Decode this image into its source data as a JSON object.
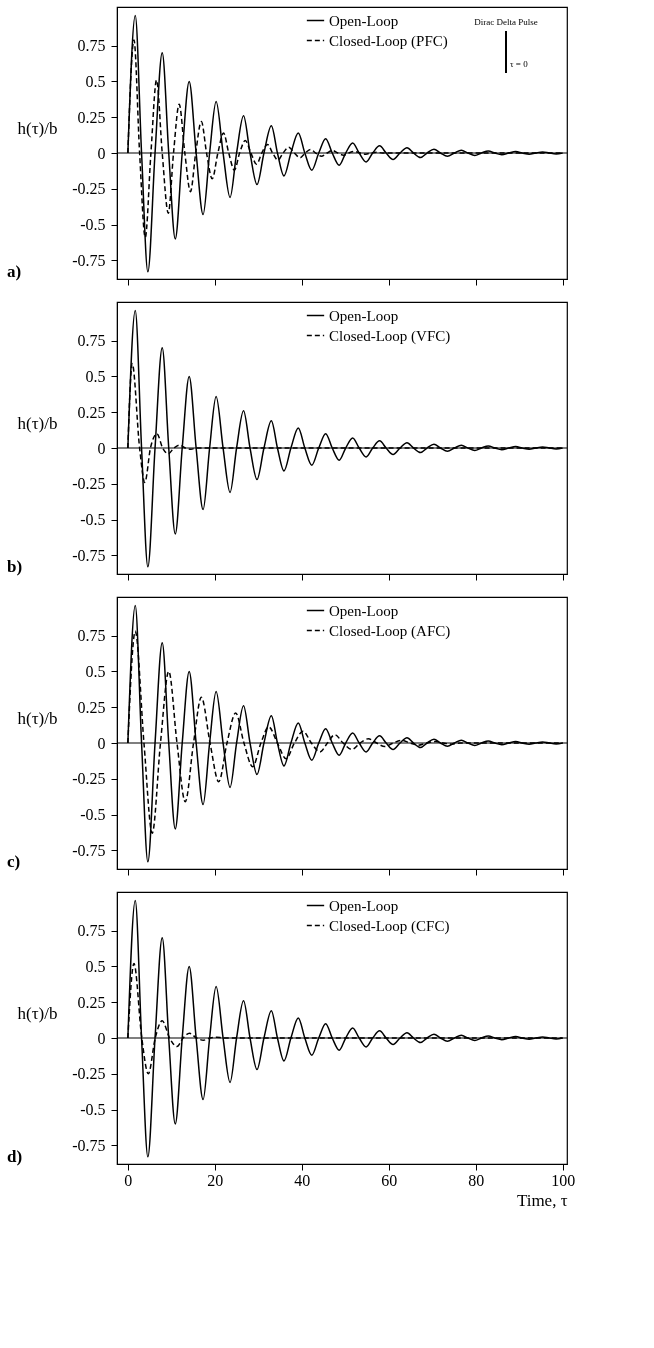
{
  "chart_data": [
    {
      "type": "line",
      "ylabel": "h(τ)/b",
      "xlim": [
        -2.5,
        101
      ],
      "ylim": [
        -0.88,
        1.02
      ],
      "xticks": [
        0,
        20,
        40,
        60,
        80,
        100
      ],
      "yticks": [
        -0.75,
        -0.5,
        -0.25,
        0,
        0.25,
        0.5,
        0.75
      ],
      "tick_labels": "y",
      "legend": "top",
      "annotations": [
        "a)",
        "Dirac Delta Pulse",
        "τ = 0"
      ],
      "ref_lines": [
        {
          "axis": "y",
          "value": 0,
          "color": "#000000"
        }
      ],
      "series": [
        {
          "name": "Open-Loop",
          "color": "#000000",
          "line_style": "solid",
          "x": [
            0,
            1.7,
            3.15,
            4.6,
            6.25,
            7.9,
            9.4,
            10.9,
            12.5,
            14.1,
            15.7,
            17.3,
            18.8,
            20.3,
            21.9,
            23.5,
            25.0,
            26.6,
            28.1,
            29.7,
            31.3,
            33.0,
            34.4,
            35.9,
            37.5,
            39.2,
            40.7,
            42.3,
            43.9,
            45.5,
            47.0,
            48.6,
            50.1,
            51.7,
            53.2,
            54.8,
            56.3,
            57.9,
            59.4,
            61.0,
            62.6,
            64.2,
            65.7,
            67.3,
            68.8,
            70.4,
            71.9,
            73.5,
            75.1,
            76.7,
            78.2,
            79.8,
            81.3,
            82.9,
            84.4,
            86.0,
            87.6,
            89.2,
            90.7,
            92.3,
            93.8,
            95.4,
            96.9,
            98.5,
            100
          ],
          "values": [
            0,
            0.96,
            0,
            -0.83,
            0,
            0.7,
            0,
            -0.6,
            0,
            0.5,
            0,
            -0.43,
            0,
            0.36,
            0,
            -0.31,
            0,
            0.26,
            0,
            -0.22,
            0,
            0.19,
            0,
            -0.16,
            0,
            0.14,
            0,
            -0.12,
            0,
            0.1,
            0,
            -0.085,
            0,
            0.07,
            0,
            -0.062,
            0,
            0.05,
            0,
            -0.045,
            0,
            0.037,
            0,
            -0.032,
            0,
            0.027,
            0,
            -0.023,
            0,
            0.02,
            0,
            -0.017,
            0,
            0.014,
            0,
            -0.012,
            0,
            0.01,
            0,
            -0.009,
            0,
            0.007,
            0,
            -0.006,
            0
          ]
        },
        {
          "name": "Closed-Loop (PFC)",
          "color": "#000000",
          "line_style": "dashed",
          "x": [
            0,
            1.4,
            2.7,
            4.0,
            5.3,
            6.6,
            7.9,
            9.3,
            10.5,
            11.8,
            13.1,
            14.4,
            15.6,
            16.9,
            18.1,
            19.4,
            20.7,
            22.0,
            23.2,
            24.5,
            25.7,
            27.0,
            28.3,
            29.6,
            30.8,
            32.1,
            33.3,
            34.5,
            35.7,
            37.0,
            38.3,
            39.6,
            40.8,
            42.0,
            43.2,
            44.5,
            45.8,
            47.0,
            48.3,
            49.6,
            50.8,
            52.1,
            53.4,
            54.7,
            55.9,
            57.2,
            58.5,
            100
          ],
          "values": [
            0,
            0.79,
            0,
            -0.59,
            0,
            0.51,
            0,
            -0.42,
            0,
            0.34,
            0,
            -0.27,
            0,
            0.22,
            0,
            -0.18,
            0,
            0.14,
            0,
            -0.12,
            0,
            0.087,
            0,
            -0.078,
            0,
            0.06,
            0,
            -0.05,
            0,
            0.04,
            0,
            -0.033,
            0,
            0.025,
            0,
            -0.022,
            0,
            0.018,
            0,
            -0.015,
            0,
            0.011,
            0,
            -0.008,
            0,
            0.006,
            0,
            0
          ]
        }
      ]
    },
    {
      "type": "line",
      "ylabel": "h(τ)/b",
      "xlim": [
        -2.5,
        101
      ],
      "ylim": [
        -0.88,
        1.02
      ],
      "xticks": [
        0,
        20,
        40,
        60,
        80,
        100
      ],
      "yticks": [
        -0.75,
        -0.5,
        -0.25,
        0,
        0.25,
        0.5,
        0.75
      ],
      "tick_labels": "y",
      "legend": "top",
      "annotations": [
        "b)"
      ],
      "ref_lines": [
        {
          "axis": "y",
          "value": 0,
          "color": "#000000"
        }
      ],
      "series": [
        {
          "name": "Open-Loop",
          "color": "#000000",
          "line_style": "solid",
          "x": [
            0,
            1.7,
            3.15,
            4.6,
            6.25,
            7.9,
            9.4,
            10.9,
            12.5,
            14.1,
            15.7,
            17.3,
            18.8,
            20.3,
            21.9,
            23.5,
            25.0,
            26.6,
            28.1,
            29.7,
            31.3,
            33.0,
            34.4,
            35.9,
            37.5,
            39.2,
            40.7,
            42.3,
            43.9,
            45.5,
            47.0,
            48.6,
            50.1,
            51.7,
            53.2,
            54.8,
            56.3,
            57.9,
            59.4,
            61.0,
            62.6,
            64.2,
            65.7,
            67.3,
            68.8,
            70.4,
            71.9,
            73.5,
            75.1,
            76.7,
            78.2,
            79.8,
            81.3,
            82.9,
            84.4,
            86.0,
            87.6,
            89.2,
            90.7,
            92.3,
            93.8,
            95.4,
            96.9,
            98.5,
            100
          ],
          "values": [
            0,
            0.96,
            0,
            -0.83,
            0,
            0.7,
            0,
            -0.6,
            0,
            0.5,
            0,
            -0.43,
            0,
            0.36,
            0,
            -0.31,
            0,
            0.26,
            0,
            -0.22,
            0,
            0.19,
            0,
            -0.16,
            0,
            0.14,
            0,
            -0.12,
            0,
            0.1,
            0,
            -0.085,
            0,
            0.07,
            0,
            -0.062,
            0,
            0.05,
            0,
            -0.045,
            0,
            0.037,
            0,
            -0.032,
            0,
            0.027,
            0,
            -0.023,
            0,
            0.02,
            0,
            -0.017,
            0,
            0.014,
            0,
            -0.012,
            0,
            0.01,
            0,
            -0.009,
            0,
            0.007,
            0,
            -0.006,
            0
          ]
        },
        {
          "name": "Closed-Loop (VFC)",
          "color": "#000000",
          "line_style": "dashed",
          "x": [
            0,
            1.0,
            2.7,
            3.9,
            5.2,
            6.7,
            8.0,
            9.3,
            10.6,
            11.9,
            13.2,
            14.5,
            15.8,
            100
          ],
          "values": [
            0,
            0.59,
            0,
            -0.24,
            0,
            0.1,
            0,
            -0.04,
            0,
            0.02,
            0,
            -0.008,
            0,
            0
          ]
        }
      ]
    },
    {
      "type": "line",
      "ylabel": "h(τ)/b",
      "xlim": [
        -2.5,
        101
      ],
      "ylim": [
        -0.88,
        1.02
      ],
      "xticks": [
        0,
        20,
        40,
        60,
        80,
        100
      ],
      "yticks": [
        -0.75,
        -0.5,
        -0.25,
        0,
        0.25,
        0.5,
        0.75
      ],
      "tick_labels": "y",
      "legend": "top",
      "annotations": [
        "c)"
      ],
      "ref_lines": [
        {
          "axis": "y",
          "value": 0,
          "color": "#000000"
        }
      ],
      "series": [
        {
          "name": "Open-Loop",
          "color": "#000000",
          "line_style": "solid",
          "x": [
            0,
            1.7,
            3.15,
            4.6,
            6.25,
            7.9,
            9.4,
            10.9,
            12.5,
            14.1,
            15.7,
            17.3,
            18.8,
            20.3,
            21.9,
            23.5,
            25.0,
            26.6,
            28.1,
            29.7,
            31.3,
            33.0,
            34.4,
            35.9,
            37.5,
            39.2,
            40.7,
            42.3,
            43.9,
            45.5,
            47.0,
            48.6,
            50.1,
            51.7,
            53.2,
            54.8,
            56.3,
            57.9,
            59.4,
            61.0,
            62.6,
            64.2,
            65.7,
            67.3,
            68.8,
            70.4,
            71.9,
            73.5,
            75.1,
            76.7,
            78.2,
            79.8,
            81.3,
            82.9,
            84.4,
            86.0,
            87.6,
            89.2,
            90.7,
            92.3,
            93.8,
            95.4,
            96.9,
            98.5,
            100
          ],
          "values": [
            0,
            0.96,
            0,
            -0.83,
            0,
            0.7,
            0,
            -0.6,
            0,
            0.5,
            0,
            -0.43,
            0,
            0.36,
            0,
            -0.31,
            0,
            0.26,
            0,
            -0.22,
            0,
            0.19,
            0,
            -0.16,
            0,
            0.14,
            0,
            -0.12,
            0,
            0.1,
            0,
            -0.085,
            0,
            0.07,
            0,
            -0.062,
            0,
            0.05,
            0,
            -0.045,
            0,
            0.037,
            0,
            -0.032,
            0,
            0.027,
            0,
            -0.023,
            0,
            0.02,
            0,
            -0.017,
            0,
            0.014,
            0,
            -0.012,
            0,
            0.01,
            0,
            -0.009,
            0,
            0.007,
            0,
            -0.006,
            0
          ]
        },
        {
          "name": "Closed-Loop (AFC)",
          "color": "#000000",
          "line_style": "dashed",
          "x": [
            0,
            1.7,
            3.7,
            5.6,
            7.5,
            9.4,
            11.3,
            13.2,
            15.1,
            16.9,
            18.9,
            20.9,
            22.8,
            24.8,
            26.7,
            28.7,
            30.6,
            32.4,
            34.4,
            36.4,
            38.3,
            40.3,
            42.2,
            44.2,
            45.9,
            47.6,
            49.5,
            51.5,
            53.4,
            55.3,
            57.2,
            59.1,
            61.0,
            63.0,
            64.9,
            66.8,
            68.7,
            70.7,
            72.6,
            74.5,
            76.4,
            100
          ],
          "values": [
            0,
            0.78,
            0,
            -0.63,
            0,
            0.5,
            0,
            -0.41,
            0,
            0.32,
            0,
            -0.27,
            0,
            0.21,
            0,
            -0.165,
            0,
            0.113,
            0,
            -0.11,
            0,
            0.082,
            0,
            -0.062,
            0,
            0.058,
            0,
            -0.045,
            0,
            0.03,
            0,
            -0.025,
            0,
            0.018,
            0,
            -0.015,
            0,
            0.01,
            0,
            -0.008,
            0,
            0
          ]
        }
      ]
    },
    {
      "type": "line",
      "ylabel": "h(τ)/b",
      "xlabel": "Time, τ",
      "xlim": [
        -2.5,
        101
      ],
      "ylim": [
        -0.88,
        1.02
      ],
      "xticks": [
        0,
        20,
        40,
        60,
        80,
        100
      ],
      "yticks": [
        -0.75,
        -0.5,
        -0.25,
        0,
        0.25,
        0.5,
        0.75
      ],
      "legend": "top",
      "annotations": [
        "d)"
      ],
      "ref_lines": [
        {
          "axis": "y",
          "value": 0,
          "color": "#000000"
        }
      ],
      "series": [
        {
          "name": "Open-Loop",
          "color": "#000000",
          "line_style": "solid",
          "x": [
            0,
            1.7,
            3.15,
            4.6,
            6.25,
            7.9,
            9.4,
            10.9,
            12.5,
            14.1,
            15.7,
            17.3,
            18.8,
            20.3,
            21.9,
            23.5,
            25.0,
            26.6,
            28.1,
            29.7,
            31.3,
            33.0,
            34.4,
            35.9,
            37.5,
            39.2,
            40.7,
            42.3,
            43.9,
            45.5,
            47.0,
            48.6,
            50.1,
            51.7,
            53.2,
            54.8,
            56.3,
            57.9,
            59.4,
            61.0,
            62.6,
            64.2,
            65.7,
            67.3,
            68.8,
            70.4,
            71.9,
            73.5,
            75.1,
            76.7,
            78.2,
            79.8,
            81.3,
            82.9,
            84.4,
            86.0,
            87.6,
            89.2,
            90.7,
            92.3,
            93.8,
            95.4,
            96.9,
            98.5,
            100
          ],
          "values": [
            0,
            0.96,
            0,
            -0.83,
            0,
            0.7,
            0,
            -0.6,
            0,
            0.5,
            0,
            -0.43,
            0,
            0.36,
            0,
            -0.31,
            0,
            0.26,
            0,
            -0.22,
            0,
            0.19,
            0,
            -0.16,
            0,
            0.14,
            0,
            -0.12,
            0,
            0.1,
            0,
            -0.085,
            0,
            0.07,
            0,
            -0.062,
            0,
            0.05,
            0,
            -0.045,
            0,
            0.037,
            0,
            -0.032,
            0,
            0.027,
            0,
            -0.023,
            0,
            0.02,
            0,
            -0.017,
            0,
            0.014,
            0,
            -0.012,
            0,
            0.01,
            0,
            -0.009,
            0,
            0.007,
            0,
            -0.006,
            0
          ]
        },
        {
          "name": "Closed-Loop (CFC)",
          "color": "#000000",
          "line_style": "dashed",
          "x": [
            0,
            1.4,
            3.2,
            4.7,
            6.3,
            7.9,
            9.6,
            11.3,
            12.7,
            14.2,
            15.8,
            17.4,
            18.9,
            20.4,
            22.0,
            100
          ],
          "values": [
            0,
            0.52,
            0,
            -0.25,
            0,
            0.12,
            0,
            -0.06,
            0,
            0.033,
            0,
            -0.015,
            0,
            0.006,
            0,
            0
          ]
        }
      ]
    }
  ]
}
